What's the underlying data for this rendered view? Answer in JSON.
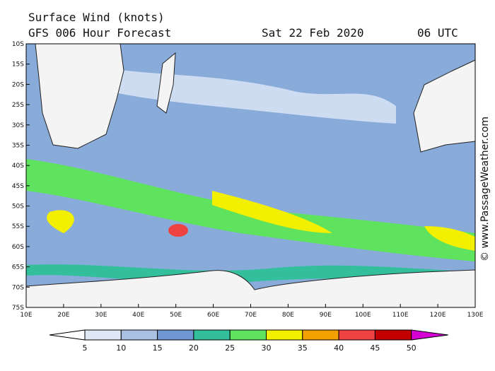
{
  "header": {
    "title": "Surface Wind (knots)",
    "model": "GFS 006 Hour Forecast",
    "date": "Sat 22 Feb 2020",
    "time": "06 UTC"
  },
  "map": {
    "lat_labels": [
      "10S",
      "15S",
      "20S",
      "25S",
      "30S",
      "35S",
      "40S",
      "45S",
      "50S",
      "55S",
      "60S",
      "65S",
      "70S",
      "75S"
    ],
    "lon_labels": [
      "10E",
      "20E",
      "30E",
      "40E",
      "50E",
      "60E",
      "70E",
      "80E",
      "90E",
      "100E",
      "110E",
      "120E",
      "130E"
    ]
  },
  "colorbar": {
    "labels": [
      5,
      10,
      15,
      20,
      25,
      30,
      35,
      40,
      45,
      50
    ],
    "colors": [
      "#ffffff",
      "#dfe8f5",
      "#a9c0e3",
      "#6f97d2",
      "#33bf9c",
      "#5fe35f",
      "#f2ef00",
      "#f2a100",
      "#ef4343",
      "#c20000",
      "#d400d4"
    ]
  },
  "watermark": "© www.PassageWeather.com"
}
